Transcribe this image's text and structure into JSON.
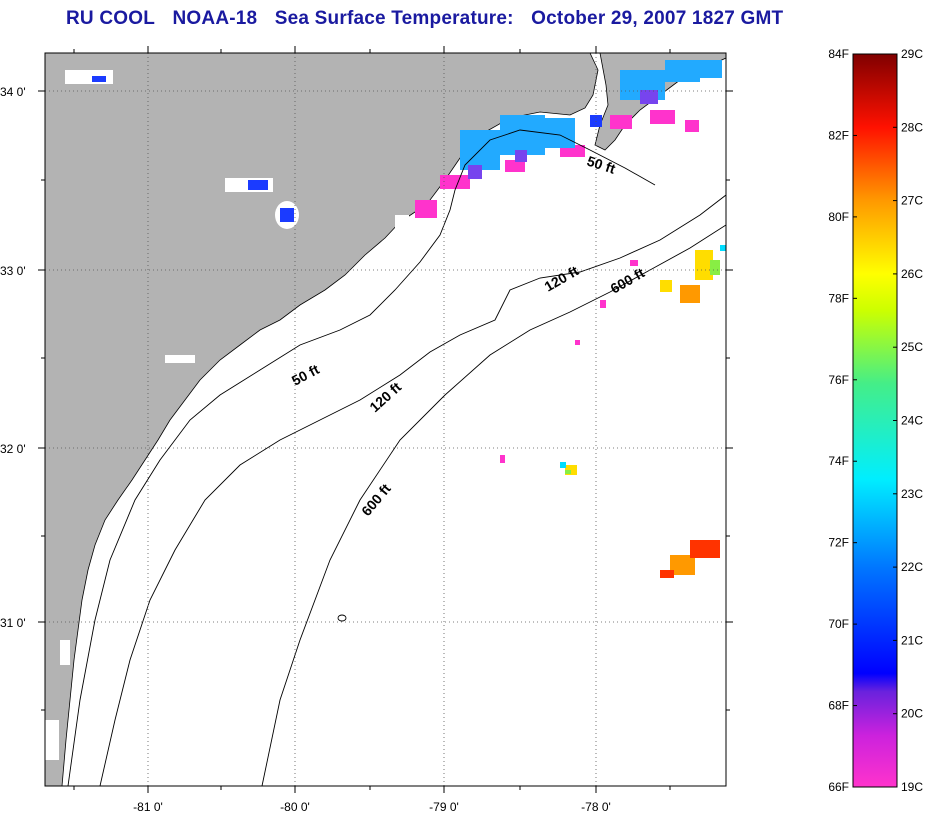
{
  "title": {
    "source": "RU COOL",
    "satellite": "NOAA-18",
    "product": "Sea Surface Temperature:",
    "datetime": "October 29, 2007 1827 GMT"
  },
  "lat_labels": [
    "34 0'",
    "33 0'",
    "32 0'",
    "31 0'"
  ],
  "lon_labels": [
    "-81 0'",
    "-80 0'",
    "-79 0'",
    "-78 0'"
  ],
  "contour_labels": [
    "50 ft",
    "120 ft",
    "600 ft",
    "50 ft",
    "120 ft",
    "600 ft"
  ],
  "colorbar": {
    "fahrenheit": [
      "84F",
      "82F",
      "80F",
      "78F",
      "76F",
      "74F",
      "72F",
      "70F",
      "68F",
      "66F"
    ],
    "celsius": [
      "29C",
      "28C",
      "27C",
      "26C",
      "25C",
      "24C",
      "23C",
      "22C",
      "21C",
      "20C",
      "19C"
    ]
  },
  "colors": {
    "land": "#b3b3b3",
    "title": "#1a1aa0",
    "cloud_mask": "#ffffff"
  }
}
